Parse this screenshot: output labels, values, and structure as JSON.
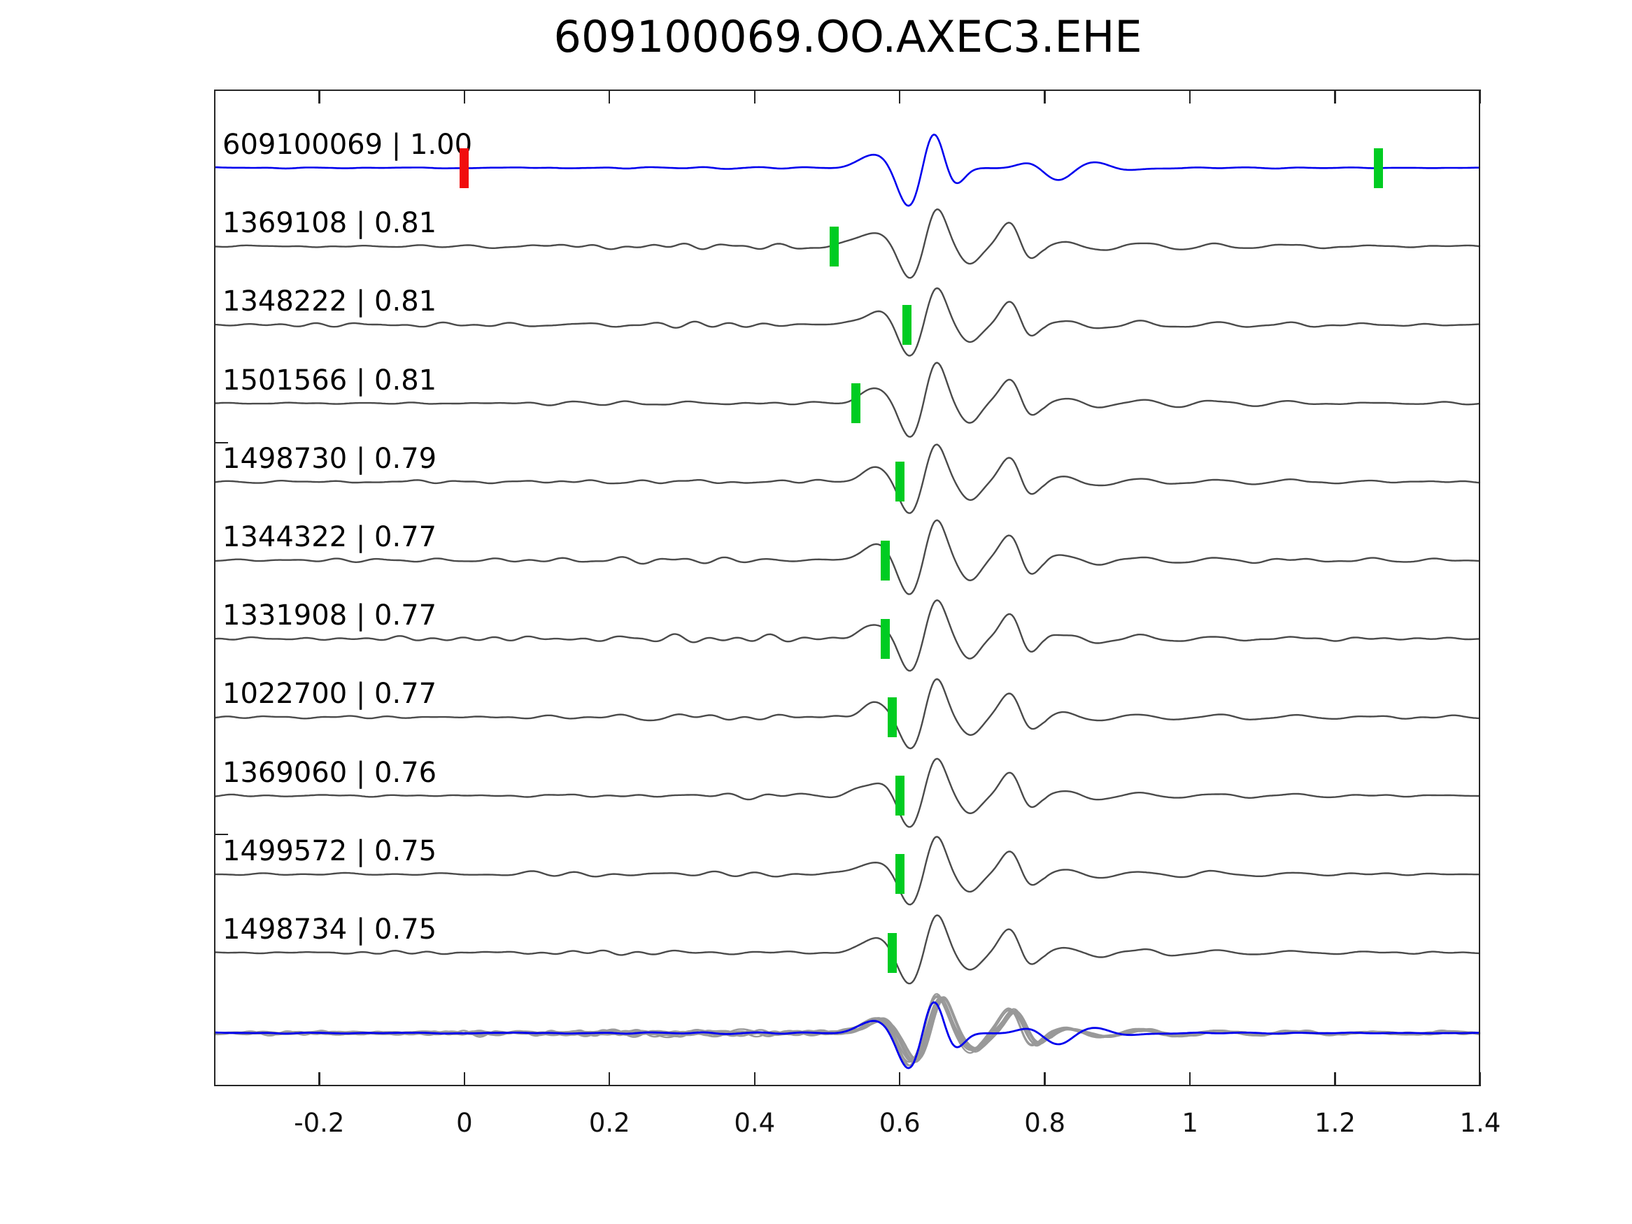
{
  "title": "609100069.OO.AXEC3.EHE",
  "chart_data": {
    "type": "line",
    "title": "609100069.OO.AXEC3.EHE",
    "description": "Cross-correlation alignment plot: reference waveform (blue) and 10 matched event waveforms (dark gray) offset vertically; green bars mark pick times, red bar marks zero lag; bottom bundle shows all traces aligned and overlaid (gray) with the reference (blue).",
    "x_axis": {
      "range": [
        -0.345,
        1.4
      ],
      "ticks": [
        -0.2,
        0,
        0.2,
        0.4,
        0.6,
        0.8,
        1,
        1.2,
        1.4
      ],
      "tick_labels": [
        "-0.2",
        "0",
        "0.2",
        "0.4",
        "0.6",
        "0.8",
        "1",
        "1.2",
        "1.4"
      ],
      "grid": false
    },
    "colors": {
      "reference_trace": "#0000ee",
      "matched_trace": "#4a4a4a",
      "overlay_trace": "#999999",
      "pick_marker": "#00cc22",
      "zero_lag_marker": "#f10e0e",
      "axes": "#262626"
    },
    "traces": [
      {
        "id": "609100069",
        "corr": 1.0,
        "label": "609100069 | 1.00",
        "is_reference": true,
        "markers": [
          {
            "time": 0.0,
            "type": "zero-lag",
            "color": "red"
          },
          {
            "time": 1.26,
            "type": "pick",
            "color": "green"
          }
        ]
      },
      {
        "id": "1369108",
        "corr": 0.81,
        "label": "1369108 | 0.81",
        "is_reference": false,
        "markers": [
          {
            "time": 0.51,
            "type": "pick",
            "color": "green"
          }
        ]
      },
      {
        "id": "1348222",
        "corr": 0.81,
        "label": "1348222 | 0.81",
        "is_reference": false,
        "markers": [
          {
            "time": 0.61,
            "type": "pick",
            "color": "green"
          }
        ]
      },
      {
        "id": "1501566",
        "corr": 0.81,
        "label": "1501566 | 0.81",
        "is_reference": false,
        "markers": [
          {
            "time": 0.54,
            "type": "pick",
            "color": "green"
          }
        ]
      },
      {
        "id": "1498730",
        "corr": 0.79,
        "label": "1498730 | 0.79",
        "is_reference": false,
        "markers": [
          {
            "time": 0.6,
            "type": "pick",
            "color": "green"
          }
        ]
      },
      {
        "id": "1344322",
        "corr": 0.77,
        "label": "1344322 | 0.77",
        "is_reference": false,
        "markers": [
          {
            "time": 0.58,
            "type": "pick",
            "color": "green"
          }
        ]
      },
      {
        "id": "1331908",
        "corr": 0.77,
        "label": "1331908 | 0.77",
        "is_reference": false,
        "markers": [
          {
            "time": 0.58,
            "type": "pick",
            "color": "green"
          }
        ]
      },
      {
        "id": "1022700",
        "corr": 0.77,
        "label": "1022700 | 0.77",
        "is_reference": false,
        "markers": [
          {
            "time": 0.59,
            "type": "pick",
            "color": "green"
          }
        ]
      },
      {
        "id": "1369060",
        "corr": 0.76,
        "label": "1369060 | 0.76",
        "is_reference": false,
        "markers": [
          {
            "time": 0.6,
            "type": "pick",
            "color": "green"
          }
        ]
      },
      {
        "id": "1499572",
        "corr": 0.75,
        "label": "1499572 | 0.75",
        "is_reference": false,
        "markers": [
          {
            "time": 0.6,
            "type": "pick",
            "color": "green"
          }
        ]
      },
      {
        "id": "1498734",
        "corr": 0.75,
        "label": "1498734 | 0.75",
        "is_reference": false,
        "markers": [
          {
            "time": 0.59,
            "type": "pick",
            "color": "green"
          }
        ]
      }
    ],
    "overlay_stack": {
      "gray_trace_count": 10,
      "includes_reference": true
    },
    "event_alignment_time": 0.65,
    "legend": "none"
  }
}
